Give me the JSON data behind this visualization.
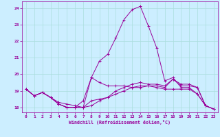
{
  "xlabel": "Windchill (Refroidissement éolien,°C)",
  "bg_color": "#cceeff",
  "grid_color": "#aadddd",
  "line_color": "#990099",
  "ylim": [
    17.7,
    24.4
  ],
  "xlim": [
    -0.5,
    23.5
  ],
  "yticks": [
    18,
    19,
    20,
    21,
    22,
    23,
    24
  ],
  "xticks": [
    0,
    1,
    2,
    3,
    4,
    5,
    6,
    7,
    8,
    9,
    10,
    11,
    12,
    13,
    14,
    15,
    16,
    17,
    18,
    19,
    20,
    21,
    22,
    23
  ],
  "series": [
    [
      19.1,
      18.7,
      18.9,
      18.6,
      18.2,
      18.0,
      18.0,
      18.4,
      19.8,
      20.8,
      21.2,
      22.2,
      23.3,
      23.9,
      24.1,
      22.9,
      21.6,
      19.6,
      19.8,
      19.2,
      19.2,
      18.8,
      18.1,
      17.9
    ],
    [
      19.1,
      18.7,
      18.9,
      18.6,
      18.2,
      18.0,
      18.0,
      18.0,
      18.4,
      18.5,
      18.6,
      18.8,
      19.0,
      19.2,
      19.3,
      19.3,
      19.3,
      19.2,
      19.7,
      19.3,
      19.3,
      19.2,
      18.1,
      17.9
    ],
    [
      19.1,
      18.7,
      18.9,
      18.6,
      18.3,
      18.2,
      18.1,
      18.0,
      18.1,
      18.4,
      18.6,
      19.0,
      19.2,
      19.4,
      19.5,
      19.4,
      19.4,
      19.3,
      19.7,
      19.4,
      19.4,
      19.2,
      18.1,
      17.9
    ],
    [
      19.1,
      18.7,
      18.9,
      18.6,
      18.2,
      18.0,
      18.0,
      18.0,
      19.8,
      19.5,
      19.3,
      19.3,
      19.3,
      19.2,
      19.2,
      19.3,
      19.2,
      19.1,
      19.1,
      19.1,
      19.1,
      18.8,
      18.1,
      17.9
    ]
  ]
}
